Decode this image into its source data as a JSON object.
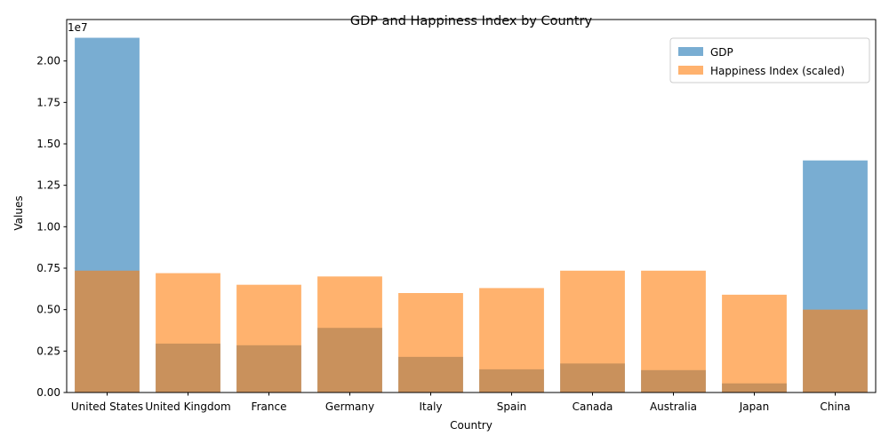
{
  "chart_data": {
    "type": "bar",
    "title": "GDP and Happiness Index by Country",
    "xlabel": "Country",
    "ylabel": "Values",
    "y_offset_label": "1e7",
    "ylim": [
      0,
      22500000
    ],
    "y_ticks": [
      0,
      2500000,
      5000000,
      7500000,
      10000000,
      12500000,
      15000000,
      17500000,
      20000000
    ],
    "y_tick_labels": [
      "0.00",
      "0.25",
      "0.50",
      "0.75",
      "1.00",
      "1.25",
      "1.50",
      "1.75",
      "2.00"
    ],
    "categories": [
      "United States",
      "United Kingdom",
      "France",
      "Germany",
      "Italy",
      "Spain",
      "Canada",
      "Australia",
      "Japan",
      "China"
    ],
    "series": [
      {
        "name": "GDP",
        "color": "#1f77b4",
        "alpha": 0.6,
        "values": [
          21400000,
          2950000,
          2850000,
          3900000,
          2150000,
          1400000,
          1750000,
          1350000,
          550000,
          14000000
        ]
      },
      {
        "name": "Happiness Index (scaled)",
        "color": "#ff7f0e",
        "alpha": 0.6,
        "values": [
          7350000,
          7200000,
          6500000,
          7000000,
          6000000,
          6300000,
          7350000,
          7350000,
          5900000,
          5000000
        ]
      }
    ],
    "grid": false,
    "legend_position": "top-right"
  }
}
